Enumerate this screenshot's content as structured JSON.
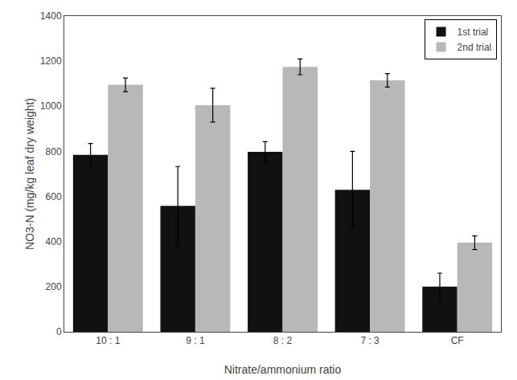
{
  "chart_data": {
    "type": "bar",
    "xlabel": "Nitrate/ammonium ratio",
    "ylabel": "NO3-N (mg/kg leaf dry weight)",
    "categories": [
      "10 : 1",
      "9 : 1",
      "8 : 2",
      "7 : 3",
      "CF"
    ],
    "series": [
      {
        "name": "1st trial",
        "color": "#111111",
        "values": [
          785,
          558,
          798,
          630,
          200
        ],
        "errors": [
          50,
          175,
          45,
          170,
          60
        ]
      },
      {
        "name": "2nd trial",
        "color": "#b8b8b8",
        "values": [
          1095,
          1005,
          1175,
          1115,
          395
        ],
        "errors": [
          30,
          75,
          35,
          30,
          30
        ]
      }
    ],
    "ylim": [
      0,
      1400
    ],
    "yticks": [
      0,
      200,
      400,
      600,
      800,
      1000,
      1200,
      1400
    ],
    "grid": false,
    "legend": "upper right"
  }
}
